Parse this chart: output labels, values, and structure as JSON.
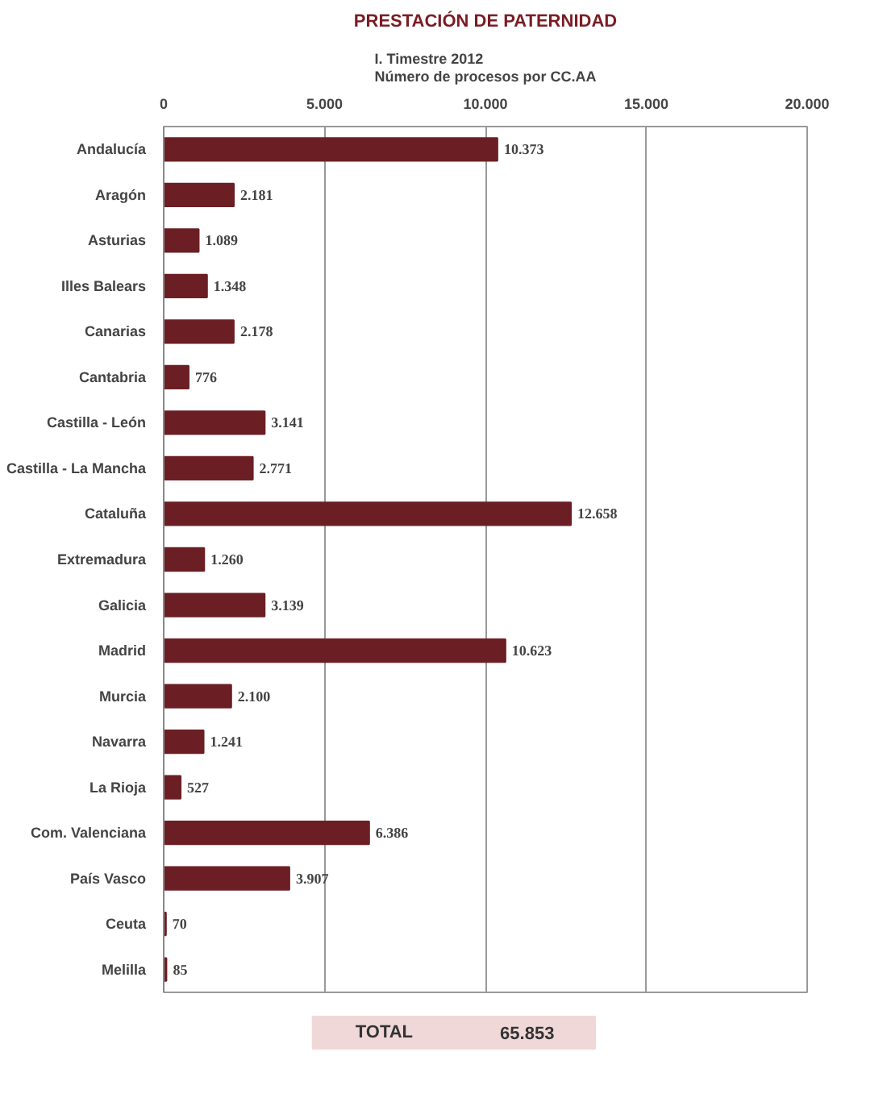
{
  "chart_data": {
    "type": "bar",
    "orientation": "horizontal",
    "title": "PRESTACIÓN DE PATERNIDAD",
    "subtitle": "I. Timestre 2012\nNúmero de procesos por CC.AA",
    "categories": [
      "Andalucía",
      "Aragón",
      "Asturias",
      "Illes Balears",
      "Canarias",
      "Cantabria",
      "Castilla - León",
      "Castilla - La Mancha",
      "Cataluña",
      "Extremadura",
      "Galicia",
      "Madrid",
      "Murcia",
      "Navarra",
      "La Rioja",
      "Com. Valenciana",
      "País Vasco",
      "Ceuta",
      "Melilla"
    ],
    "values": [
      10373,
      2181,
      1089,
      1348,
      2178,
      776,
      3141,
      2771,
      12658,
      1260,
      3139,
      10623,
      2100,
      1241,
      527,
      6386,
      3907,
      70,
      85
    ],
    "value_labels": [
      "10.373",
      "2.181",
      "1.089",
      "1.348",
      "2.178",
      "776",
      "3.141",
      "2.771",
      "12.658",
      "1.260",
      "3.139",
      "10.623",
      "2.100",
      "1.241",
      "527",
      "6.386",
      "3.907",
      "70",
      "85"
    ],
    "color": "#6b1f24",
    "xlim": [
      0,
      20000
    ],
    "xticks": [
      0,
      {
        "value": 5000,
        "label": "5.000"
      },
      {
        "value": 10000,
        "label": "10.000"
      },
      {
        "value": 15000,
        "label": "15.000"
      },
      {
        "value": 20000,
        "label": "20.000"
      }
    ],
    "grid": "x",
    "annotations": [
      "TOTAL",
      "65.853"
    ]
  }
}
